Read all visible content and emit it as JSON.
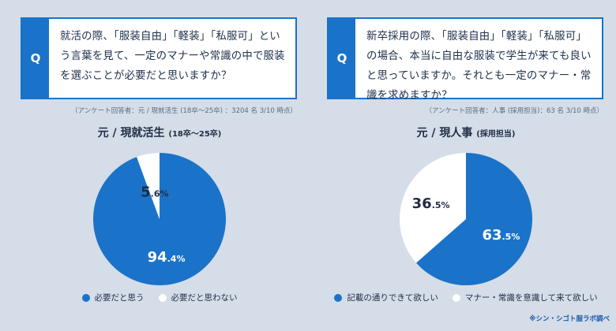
{
  "colors": {
    "accent": "#1a73c8",
    "background": "#d5dde8",
    "white": "#ffffff"
  },
  "credit": "※シン・シゴト服ラボ調べ",
  "chart_data": [
    {
      "type": "pie",
      "q_label": "Q",
      "question": "就活の際、「服装自由」「軽装」「私服可」という言葉を見て、一定のマナーや常識の中で服装を選ぶことが必要だと思いますか？",
      "note": "（アンケート回答者：元 / 現就活生 (18卒〜25卒) ：3204 名 3/10 時点）",
      "title": "元 / 現就活生",
      "title_sub": "(18卒〜25卒)",
      "slices": [
        {
          "label": "必要だと思う",
          "value": 94.4,
          "big": "94",
          "small": ".4%",
          "color": "#1a73c8",
          "text_color": "#ffffff"
        },
        {
          "label": "必要だと思わない",
          "value": 5.6,
          "big": "5",
          "small": ".6%",
          "color": "#ffffff",
          "text_color": "#1f2d44"
        }
      ]
    },
    {
      "type": "pie",
      "q_label": "Q",
      "question": "新卒採用の際、「服装自由」「軽装」「私服可」の場合、本当に自由な服装で学生が来ても良いと思っていますか。それとも一定のマナー・常識を求めますか？",
      "note": "（アンケート回答者：人事 (採用担当)：63 名 3/10 時点）",
      "title": "元 / 現人事",
      "title_sub": "(採用担当)",
      "slices": [
        {
          "label": "記載の通りできて欲しい",
          "value": 63.5,
          "big": "63",
          "small": ".5%",
          "color": "#1a73c8",
          "text_color": "#ffffff"
        },
        {
          "label": "マナー・常識を意識して来て欲しい",
          "value": 36.5,
          "big": "36",
          "small": ".5%",
          "color": "#ffffff",
          "text_color": "#1f2d44"
        }
      ]
    }
  ]
}
